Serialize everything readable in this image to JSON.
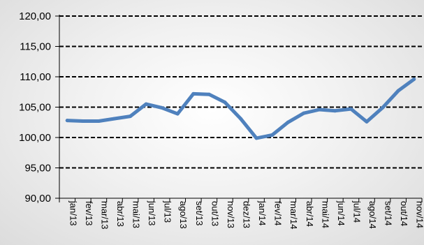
{
  "chart_data": {
    "type": "line",
    "title": "",
    "xlabel": "",
    "ylabel": "",
    "ylim": [
      90,
      120
    ],
    "yticks": [
      90,
      95,
      100,
      105,
      110,
      115,
      120
    ],
    "ytick_labels": [
      "90,00",
      "95,00",
      "100,00",
      "105,00",
      "110,00",
      "115,00",
      "120,00"
    ],
    "categories": [
      "jan/13",
      "fev/13",
      "mar/13",
      "abr/13",
      "mai/13",
      "jun/13",
      "jul/13",
      "ago/13",
      "set/13",
      "out/13",
      "nov/13",
      "dez/13",
      "jan/14",
      "fev/14",
      "mar/14",
      "abr/14",
      "mai/14",
      "jun/14",
      "jul/14",
      "ago/14",
      "set/14",
      "out/14",
      "nov/14"
    ],
    "series": [
      {
        "values": [
          102.8,
          102.7,
          102.7,
          103.1,
          103.5,
          105.5,
          104.9,
          103.9,
          107.2,
          107.1,
          105.8,
          103.1,
          99.9,
          100.4,
          102.5,
          104.0,
          104.6,
          104.4,
          104.7,
          102.6,
          104.9,
          107.7,
          109.6
        ],
        "color": "#4f81bd"
      }
    ],
    "grid": true,
    "grid_style": "dashed"
  }
}
